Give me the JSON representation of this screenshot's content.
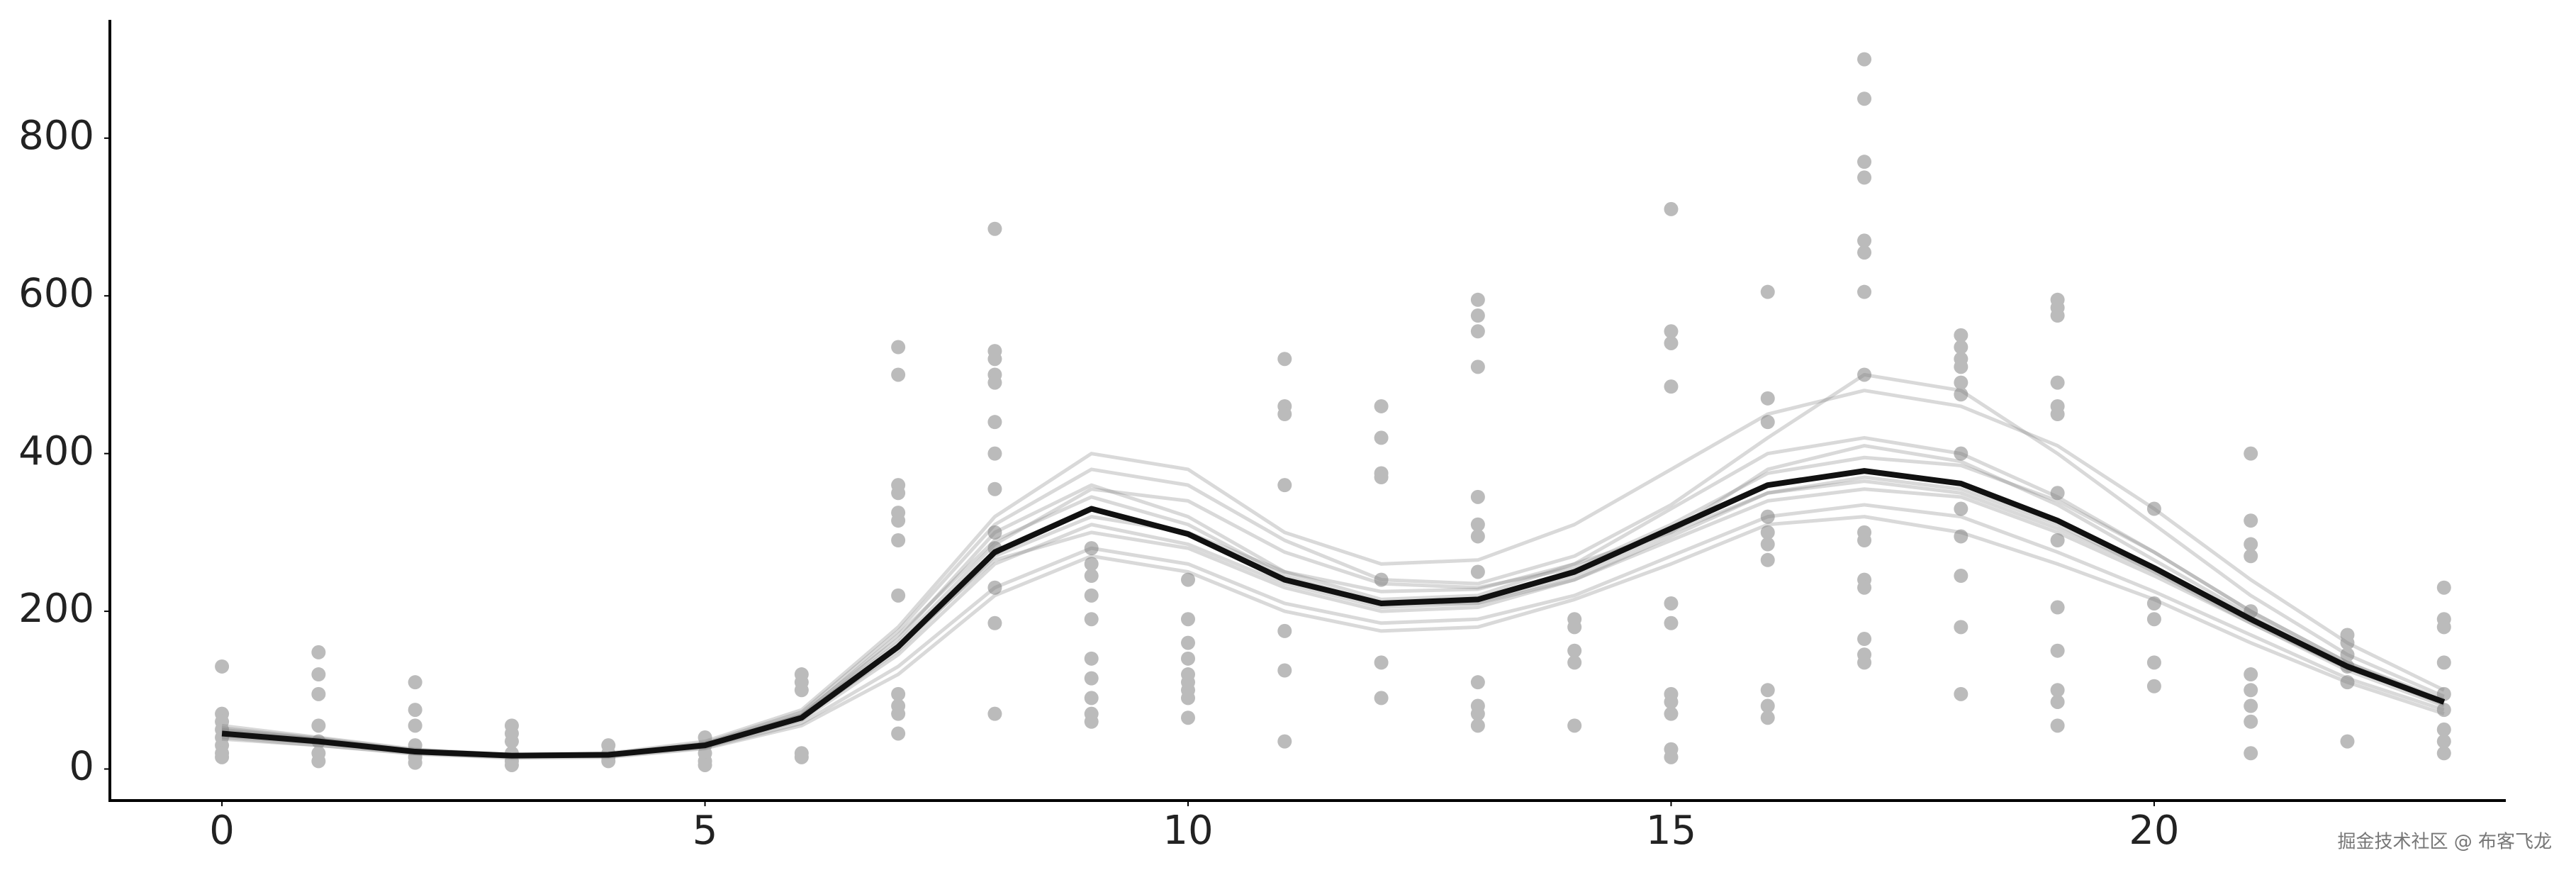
{
  "chart_data": {
    "type": "line",
    "x": [
      0,
      1,
      2,
      3,
      4,
      5,
      6,
      7,
      8,
      9,
      10,
      11,
      12,
      13,
      14,
      15,
      16,
      17,
      18,
      19,
      20,
      21,
      22,
      23
    ],
    "xlim": [
      -1.16,
      23.64
    ],
    "ylim": [
      -40,
      950
    ],
    "xticks": [
      0,
      5,
      10,
      15,
      20
    ],
    "yticks": [
      0,
      200,
      400,
      600,
      800
    ],
    "series": [
      {
        "color": "#808080",
        "opacity": 0.3,
        "width": 5,
        "values": [
          55,
          40,
          25,
          18,
          20,
          35,
          75,
          180,
          320,
          400,
          380,
          300,
          260,
          265,
          310,
          380,
          450,
          480,
          460,
          410,
          330,
          240,
          160,
          100
        ]
      },
      {
        "color": "#808080",
        "opacity": 0.3,
        "width": 5,
        "values": [
          40,
          30,
          20,
          15,
          16,
          27,
          58,
          130,
          230,
          280,
          260,
          210,
          185,
          190,
          220,
          270,
          320,
          335,
          320,
          275,
          225,
          170,
          115,
          75
        ]
      },
      {
        "color": "#808080",
        "opacity": 0.3,
        "width": 5,
        "values": [
          50,
          38,
          23,
          17,
          18,
          32,
          70,
          165,
          300,
          360,
          320,
          250,
          215,
          220,
          260,
          330,
          400,
          420,
          400,
          345,
          275,
          200,
          135,
          88
        ]
      },
      {
        "color": "#808080",
        "opacity": 0.3,
        "width": 5,
        "values": [
          42,
          33,
          21,
          16,
          17,
          28,
          62,
          145,
          260,
          310,
          285,
          235,
          205,
          210,
          240,
          290,
          340,
          355,
          345,
          300,
          245,
          185,
          125,
          80
        ]
      },
      {
        "color": "#808080",
        "opacity": 0.3,
        "width": 5,
        "values": [
          48,
          36,
          22,
          17,
          19,
          31,
          68,
          170,
          290,
          345,
          310,
          245,
          210,
          210,
          245,
          300,
          380,
          410,
          390,
          335,
          265,
          195,
          130,
          82
        ]
      },
      {
        "color": "#808080",
        "opacity": 0.3,
        "width": 5,
        "values": [
          44,
          34,
          22,
          17,
          18,
          29,
          64,
          150,
          270,
          320,
          300,
          250,
          225,
          228,
          260,
          300,
          350,
          370,
          355,
          310,
          250,
          185,
          128,
          84
        ]
      },
      {
        "color": "#808080",
        "opacity": 0.3,
        "width": 5,
        "values": [
          52,
          39,
          24,
          18,
          19,
          33,
          72,
          175,
          310,
          380,
          360,
          290,
          240,
          235,
          270,
          335,
          420,
          500,
          480,
          400,
          310,
          220,
          145,
          92
        ]
      },
      {
        "color": "#808080",
        "opacity": 0.3,
        "width": 5,
        "values": [
          46,
          35,
          22,
          16,
          17,
          30,
          66,
          155,
          265,
          300,
          280,
          230,
          200,
          205,
          240,
          295,
          350,
          365,
          350,
          305,
          250,
          190,
          132,
          86
        ]
      },
      {
        "color": "#808080",
        "opacity": 0.3,
        "width": 5,
        "values": [
          38,
          30,
          19,
          14,
          15,
          26,
          55,
          120,
          220,
          270,
          250,
          200,
          175,
          180,
          215,
          260,
          310,
          320,
          300,
          260,
          215,
          160,
          110,
          70
        ]
      },
      {
        "color": "#808080",
        "opacity": 0.3,
        "width": 5,
        "values": [
          50,
          37,
          23,
          17,
          19,
          31,
          68,
          160,
          285,
          355,
          340,
          275,
          235,
          230,
          255,
          310,
          375,
          395,
          385,
          340,
          275,
          200,
          135,
          85
        ]
      },
      {
        "color": "#111111",
        "opacity": 1,
        "width": 8,
        "values": [
          45,
          35,
          22,
          17,
          18,
          30,
          65,
          155,
          275,
          330,
          298,
          240,
          210,
          215,
          250,
          305,
          360,
          378,
          362,
          315,
          255,
          190,
          130,
          85
        ]
      }
    ],
    "points": {
      "color": "#bbbbbb",
      "x": [
        0,
        0,
        0,
        0,
        0,
        0,
        0,
        0,
        1,
        1,
        1,
        1,
        1,
        1,
        1,
        2,
        2,
        2,
        2,
        2,
        2,
        3,
        3,
        3,
        3,
        3,
        3,
        4,
        4,
        4,
        4,
        5,
        5,
        5,
        5,
        5,
        6,
        6,
        6,
        6,
        6,
        7,
        7,
        7,
        7,
        7,
        7,
        7,
        7,
        7,
        7,
        7,
        7,
        8,
        8,
        8,
        8,
        8,
        8,
        8,
        8,
        8,
        8,
        8,
        8,
        8,
        9,
        9,
        9,
        9,
        9,
        9,
        9,
        9,
        9,
        9,
        10,
        10,
        10,
        10,
        10,
        10,
        10,
        10,
        10,
        11,
        11,
        11,
        11,
        11,
        11,
        11,
        12,
        12,
        12,
        12,
        12,
        12,
        12,
        13,
        13,
        13,
        13,
        13,
        13,
        13,
        13,
        13,
        13,
        13,
        13,
        14,
        14,
        14,
        14,
        14,
        15,
        15,
        15,
        15,
        15,
        15,
        15,
        15,
        15,
        15,
        15,
        16,
        16,
        16,
        16,
        16,
        16,
        16,
        16,
        16,
        16,
        17,
        17,
        17,
        17,
        17,
        17,
        17,
        17,
        17,
        17,
        17,
        17,
        17,
        17,
        17,
        18,
        18,
        18,
        18,
        18,
        18,
        18,
        18,
        18,
        18,
        18,
        18,
        19,
        19,
        19,
        19,
        19,
        19,
        19,
        19,
        19,
        19,
        19,
        19,
        19,
        20,
        20,
        20,
        20,
        20,
        21,
        21,
        21,
        21,
        21,
        21,
        21,
        21,
        21,
        21,
        22,
        22,
        22,
        22,
        22,
        22,
        23,
        23,
        23,
        23,
        23,
        23,
        23,
        23,
        23
      ],
      "y": [
        130,
        70,
        60,
        50,
        40,
        30,
        20,
        15,
        148,
        120,
        95,
        55,
        35,
        20,
        10,
        110,
        75,
        55,
        30,
        15,
        8,
        55,
        45,
        35,
        20,
        10,
        5,
        30,
        20,
        15,
        10,
        40,
        30,
        20,
        10,
        5,
        120,
        110,
        100,
        20,
        15,
        535,
        500,
        360,
        350,
        325,
        315,
        290,
        220,
        95,
        80,
        70,
        45,
        685,
        530,
        520,
        500,
        490,
        440,
        400,
        355,
        300,
        280,
        230,
        185,
        70,
        280,
        260,
        245,
        220,
        190,
        140,
        115,
        90,
        70,
        60,
        240,
        190,
        160,
        140,
        120,
        110,
        100,
        90,
        65,
        520,
        460,
        450,
        360,
        175,
        125,
        35,
        460,
        420,
        375,
        370,
        240,
        135,
        90,
        595,
        575,
        555,
        510,
        345,
        310,
        295,
        250,
        110,
        80,
        70,
        55,
        190,
        180,
        150,
        135,
        55,
        710,
        555,
        540,
        485,
        210,
        185,
        95,
        85,
        70,
        25,
        15,
        605,
        470,
        440,
        320,
        300,
        285,
        265,
        100,
        80,
        65,
        900,
        850,
        770,
        750,
        670,
        655,
        605,
        500,
        300,
        290,
        240,
        230,
        165,
        145,
        135,
        550,
        535,
        520,
        510,
        490,
        475,
        400,
        330,
        295,
        245,
        180,
        95,
        595,
        585,
        575,
        490,
        460,
        450,
        350,
        290,
        205,
        150,
        100,
        85,
        55,
        330,
        210,
        190,
        135,
        105,
        400,
        315,
        285,
        270,
        200,
        120,
        100,
        80,
        60,
        20,
        170,
        160,
        145,
        130,
        110,
        35,
        230,
        190,
        180,
        135,
        95,
        75,
        50,
        35,
        20
      ]
    }
  },
  "watermark": "掘金技术社区 @ 布客飞龙"
}
